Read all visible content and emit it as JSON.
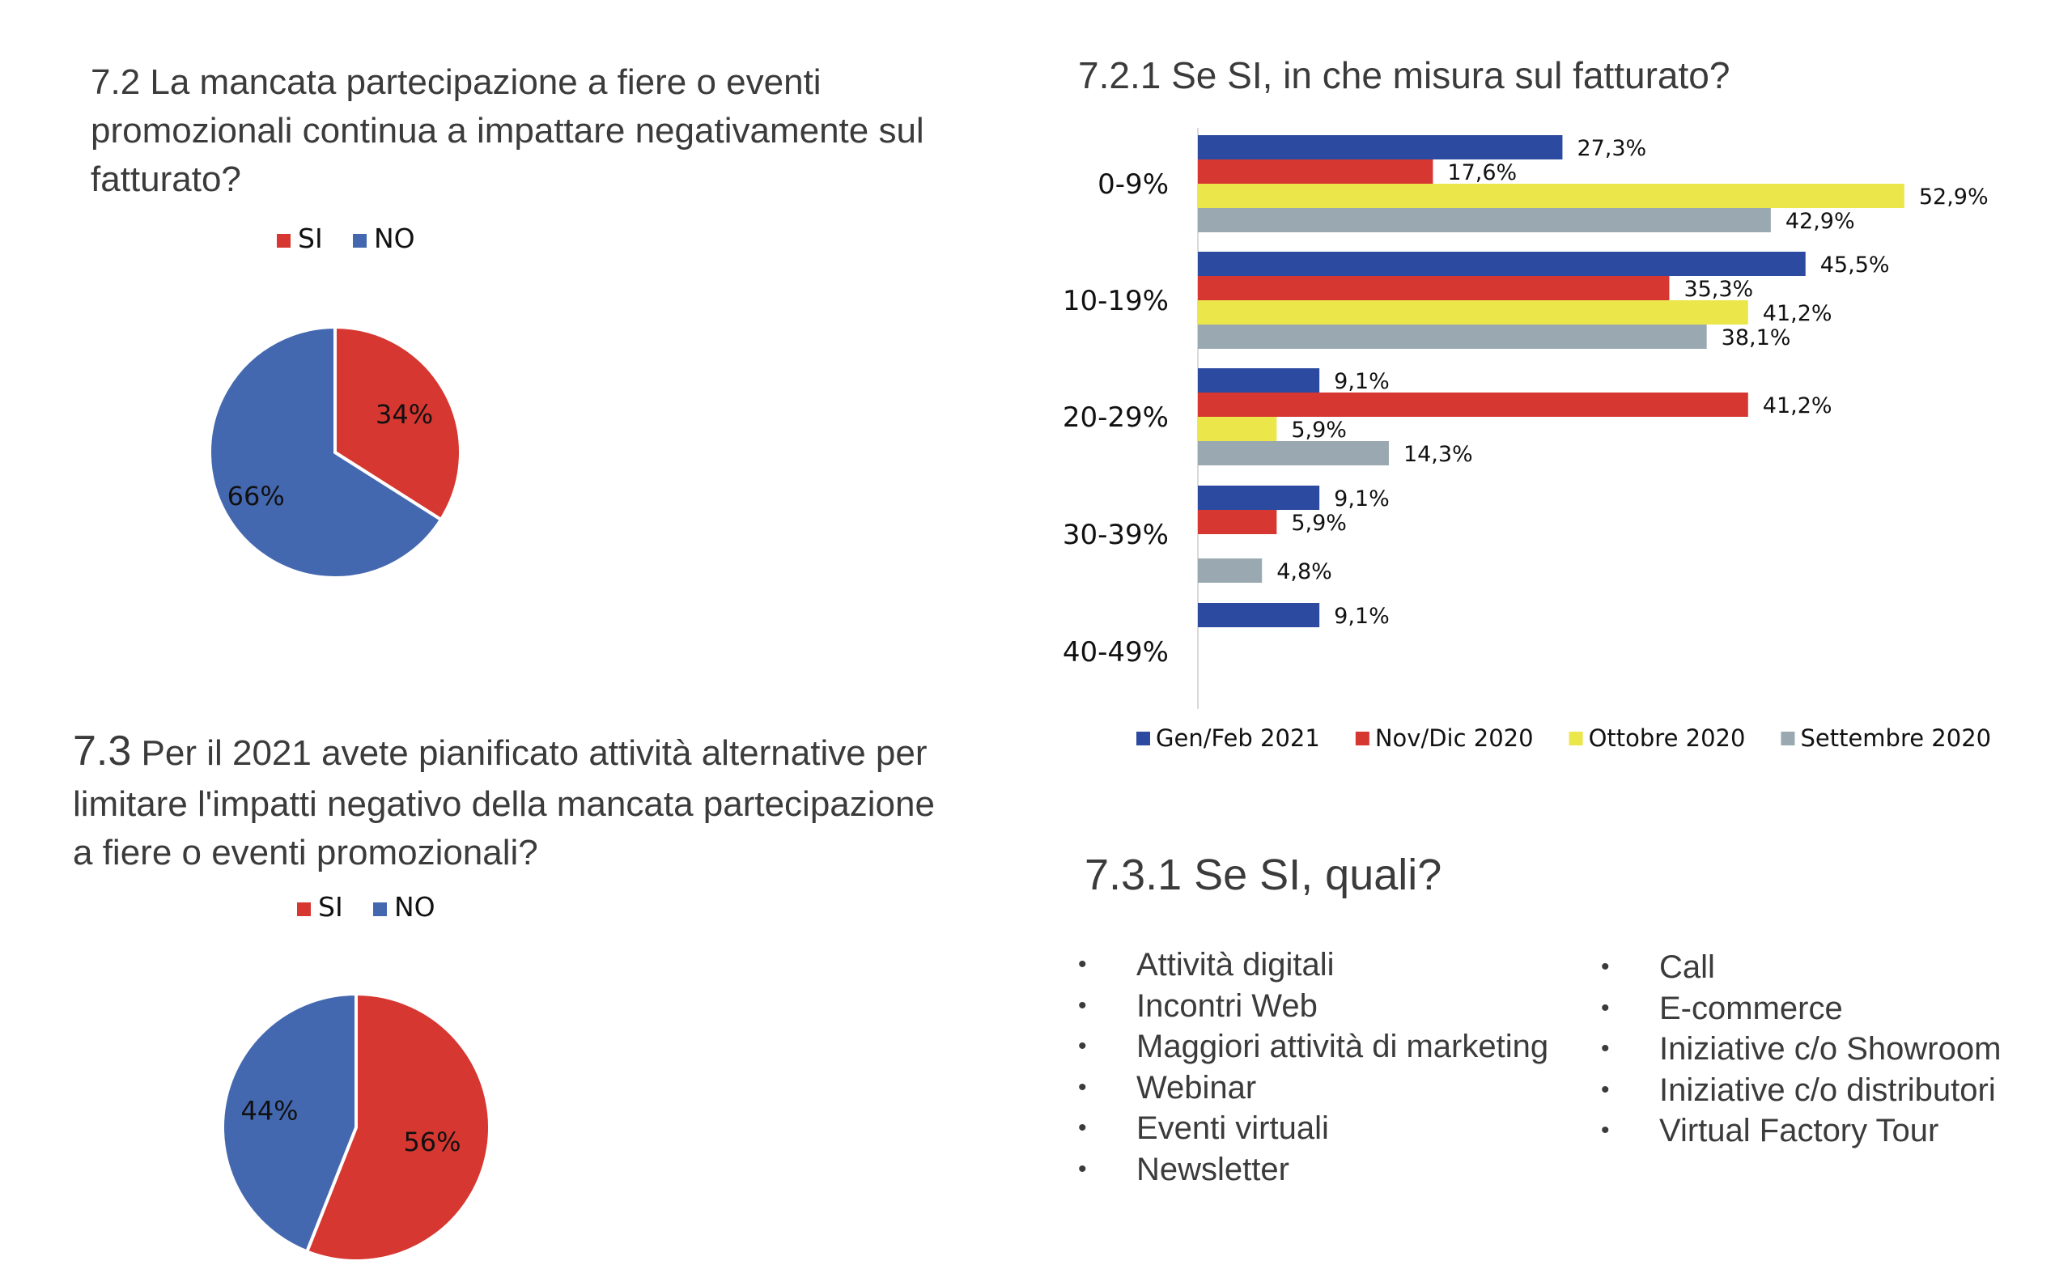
{
  "questions": {
    "q72_lines": [
      "7.2 La mancata partecipazione a fiere o eventi",
      "promozionali continua a impattare negativamente sul",
      "fatturato?"
    ],
    "q73_num": "7.3",
    "q73_lines": [
      " Per il 2021 avete pianificato attività alternative per",
      "limitare l'impatti negativo della mancata partecipazione",
      "a fiere o eventi promozionali?"
    ]
  },
  "bar_title": "7.2.1 Se SI, in che misura sul fatturato?",
  "list_title": "7.3.1 Se SI, quali?",
  "list": {
    "bullet": "•",
    "left": [
      "Attività digitali",
      "Incontri Web",
      "Maggiori attività di marketing",
      "Webinar",
      "Eventi virtuali",
      "Newsletter"
    ],
    "right": [
      "Call",
      "E-commerce",
      "Iniziative c/o Showroom",
      "Iniziative c/o distributori",
      "Virtual Factory Tour"
    ]
  },
  "chart_data": [
    {
      "type": "pie",
      "legend": [
        "SI",
        "NO"
      ],
      "legend_position": "top",
      "slices": [
        {
          "label": "SI",
          "value": 34,
          "display": "34%",
          "color": "#d63731"
        },
        {
          "label": "NO",
          "value": 66,
          "display": "66%",
          "color": "#4468b0"
        }
      ]
    },
    {
      "type": "pie",
      "legend": [
        "SI",
        "NO"
      ],
      "legend_position": "top",
      "slices": [
        {
          "label": "SI",
          "value": 56,
          "display": "56%",
          "color": "#d63731"
        },
        {
          "label": "NO",
          "value": 44,
          "display": "44%",
          "color": "#4468b0"
        }
      ]
    },
    {
      "type": "bar",
      "orientation": "horizontal",
      "title": "7.2.1 Se SI, in che misura sul fatturato?",
      "categories": [
        "0-9%",
        "10-19%",
        "20-29%",
        "30-39%",
        "40-49%"
      ],
      "xlim": [
        0,
        60
      ],
      "grid": false,
      "legend_position": "bottom",
      "series": [
        {
          "name": "Gen/Feb 2021",
          "color": "#2c4aa0",
          "values": [
            27.3,
            45.5,
            9.1,
            9.1,
            9.1
          ],
          "labels": [
            "27,3%",
            "45,5%",
            "9,1%",
            "9,1%",
            "9,1%"
          ]
        },
        {
          "name": "Nov/Dic 2020",
          "color": "#d63731",
          "values": [
            17.6,
            35.3,
            41.2,
            5.9,
            null
          ],
          "labels": [
            "17,6%",
            "35,3%",
            "41,2%",
            "5,9%",
            ""
          ]
        },
        {
          "name": "Ottobre 2020",
          "color": "#ebe74b",
          "values": [
            52.9,
            41.2,
            5.9,
            null,
            null
          ],
          "labels": [
            "52,9%",
            "41,2%",
            "5,9%",
            "",
            ""
          ]
        },
        {
          "name": "Settembre 2020",
          "color": "#99a8b1",
          "values": [
            42.9,
            38.1,
            14.3,
            4.8,
            null
          ],
          "labels": [
            "42,9%",
            "38,1%",
            "14,3%",
            "4,8%",
            ""
          ]
        }
      ]
    }
  ]
}
